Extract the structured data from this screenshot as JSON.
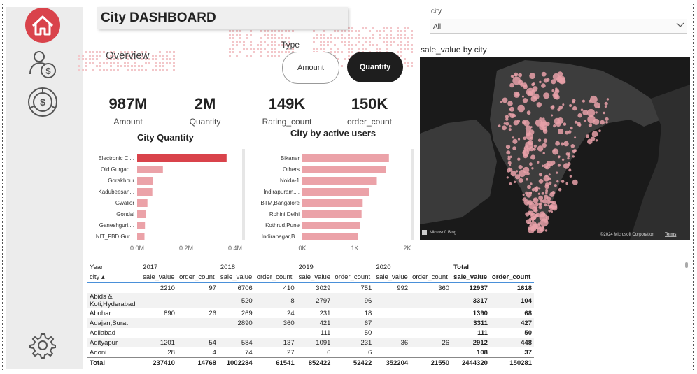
{
  "header": {
    "title": "City DASHBOARD",
    "overview": "Overview"
  },
  "sidebar": {
    "items": [
      {
        "icon": "home-icon",
        "active": true
      },
      {
        "icon": "user-money-icon"
      },
      {
        "icon": "donut-dollar-icon"
      },
      {
        "icon": "gear-icon"
      }
    ]
  },
  "type_filter": {
    "label": "Type",
    "options": [
      "Amount",
      "Quantity"
    ],
    "selected": "Quantity"
  },
  "kpis": [
    {
      "value": "987M",
      "label": "Amount"
    },
    {
      "value": "2M",
      "label": "Quantity"
    },
    {
      "value": "149K",
      "label": "Rating_count"
    },
    {
      "value": "150K",
      "label": "order_count"
    }
  ],
  "city_filter": {
    "label": "city",
    "value": "All"
  },
  "map": {
    "title": "sale_value by city",
    "provider": "Microsoft Bing",
    "copyright": "©2024 Microsoft Corporation",
    "terms": "Terms"
  },
  "colors": {
    "accent": "#d9434b",
    "bar": "#eba2a8",
    "map_bg": "#1a1a1a",
    "land": "#3d3d3d",
    "bubble": "#e8a0a8"
  },
  "chart_data": [
    {
      "type": "bar",
      "orientation": "horizontal",
      "title": "City Quantity",
      "categories": [
        "Electronic Ci...",
        "Old Gurgao...",
        "Gorakhpur",
        "Kadubeesan...",
        "Gwalior",
        "Gondal",
        "Ganeshguri....",
        "NIT_FBD,Gur..."
      ],
      "values": [
        365000,
        105000,
        65000,
        62000,
        42000,
        35000,
        32000,
        30000
      ],
      "highlight_index": 0,
      "xlim": [
        0,
        400000
      ],
      "x_ticks": [
        "0.0M",
        "0.2M",
        "0.4M"
      ],
      "x_tick_values": [
        0,
        200000,
        400000
      ]
    },
    {
      "type": "bar",
      "orientation": "horizontal",
      "title": "City by active users",
      "categories": [
        "Bikaner",
        "Others",
        "Noida-1",
        "Indirapuram,...",
        "BTM,Bangalore",
        "Rohini,Delhi",
        "Kothrud,Pune",
        "Indiranagar,B..."
      ],
      "values": [
        1650,
        1600,
        1420,
        1280,
        1150,
        1130,
        1100,
        1060
      ],
      "xlim": [
        0,
        2000
      ],
      "x_ticks": [
        "0K",
        "1K",
        "2K"
      ],
      "x_tick_values": [
        0,
        1000,
        2000
      ]
    }
  ],
  "table": {
    "row_header": "Year",
    "city_header": "city",
    "years": [
      "2017",
      "2018",
      "2019",
      "2020",
      "Total"
    ],
    "measures": [
      "sale_value",
      "order_count"
    ],
    "rows": [
      {
        "city": "",
        "cells": [
          "2210",
          "97",
          "6706",
          "410",
          "3029",
          "751",
          "992",
          "360",
          "12937",
          "1618"
        ]
      },
      {
        "city": "Abids & Koti,Hyderabad",
        "cells": [
          "",
          "",
          "520",
          "8",
          "2797",
          "96",
          "",
          "",
          "3317",
          "104"
        ]
      },
      {
        "city": "Abohar",
        "cells": [
          "890",
          "26",
          "269",
          "24",
          "231",
          "18",
          "",
          "",
          "1390",
          "68"
        ]
      },
      {
        "city": "Adajan,Surat",
        "cells": [
          "",
          "",
          "2890",
          "360",
          "421",
          "67",
          "",
          "",
          "3311",
          "427"
        ]
      },
      {
        "city": "Adilabad",
        "cells": [
          "",
          "",
          "",
          "",
          "111",
          "50",
          "",
          "",
          "111",
          "50"
        ]
      },
      {
        "city": "Adityapur",
        "cells": [
          "1201",
          "54",
          "584",
          "137",
          "1091",
          "231",
          "36",
          "26",
          "2912",
          "448"
        ]
      },
      {
        "city": "Adoni",
        "cells": [
          "28",
          "4",
          "74",
          "27",
          "6",
          "6",
          "",
          "",
          "108",
          "37"
        ]
      }
    ],
    "total": {
      "label": "Total",
      "cells": [
        "237410",
        "14768",
        "1002284",
        "61541",
        "852422",
        "52422",
        "352204",
        "21550",
        "2444320",
        "150281"
      ]
    }
  }
}
